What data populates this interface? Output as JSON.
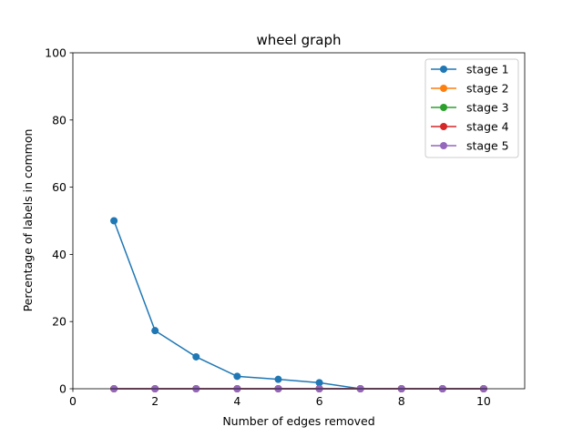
{
  "chart_data": {
    "type": "line",
    "title": "wheel graph",
    "xlabel": "Number of edges removed",
    "ylabel": "Percentage of labels in common",
    "xlim": [
      0,
      11
    ],
    "ylim": [
      0,
      100
    ],
    "xticks": [
      0,
      2,
      4,
      6,
      8,
      10
    ],
    "yticks": [
      0,
      20,
      40,
      60,
      80,
      100
    ],
    "grid": false,
    "legend_position": "top-right",
    "x": [
      1,
      2,
      3,
      4,
      5,
      6,
      7,
      8,
      9,
      10
    ],
    "series": [
      {
        "name": "stage 1",
        "color": "#1f77b4",
        "marker": "circle",
        "values": [
          50,
          17.3,
          9.5,
          3.7,
          2.8,
          1.8,
          0,
          0,
          0,
          0
        ]
      },
      {
        "name": "stage 2",
        "color": "#ff7f0e",
        "marker": "circle",
        "values": [
          0,
          0,
          0,
          0,
          0,
          0,
          0,
          0,
          0,
          0
        ]
      },
      {
        "name": "stage 3",
        "color": "#2ca02c",
        "marker": "circle",
        "values": [
          0,
          0,
          0,
          0,
          0,
          0,
          0,
          0,
          0,
          0
        ]
      },
      {
        "name": "stage 4",
        "color": "#d62728",
        "marker": "circle",
        "values": [
          0,
          0,
          0,
          0,
          0,
          0,
          0,
          0,
          0,
          0
        ]
      },
      {
        "name": "stage 5",
        "color": "#9467bd",
        "marker": "circle",
        "values": [
          0,
          0,
          0,
          0,
          0,
          0,
          0,
          0,
          0,
          0
        ]
      }
    ]
  }
}
